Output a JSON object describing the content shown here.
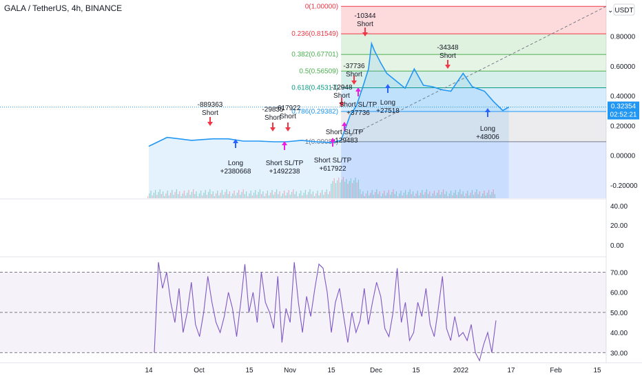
{
  "header": {
    "symbol_title": "GALA / TetherUS, 4h, BINANCE",
    "currency_button": "USDT"
  },
  "colors": {
    "line": "#2196f3",
    "rsi": "#7e57c2",
    "short": "#f23645",
    "long": "#2962ff",
    "sltp": "#e91ee0"
  },
  "chart_data": [
    {
      "type": "line",
      "title": "",
      "price_scale_ticks": [
        "0.80000",
        "0.60000",
        "0.40000",
        "0.20000",
        "0.00000",
        "-0.20000"
      ],
      "time_ticks": [
        "14",
        "Oct",
        "15",
        "Nov",
        "15",
        "Dec",
        "15",
        "2022",
        "17",
        "Feb",
        "15"
      ],
      "series": [
        {
          "x": [
            "Sep 14",
            "Sep 20",
            "Sep 28",
            "Oct 5",
            "Oct 10",
            "Oct 15",
            "Oct 20",
            "Oct 25",
            "Oct 29",
            "Nov 3",
            "Nov 8",
            "Nov 13",
            "Nov 16",
            "Nov 19",
            "Nov 21",
            "Nov 23",
            "Nov 25",
            "Nov 26",
            "Nov 27",
            "Nov 29",
            "Dec 1",
            "Dec 4",
            "Dec 7",
            "Dec 10",
            "Dec 13",
            "Dec 16",
            "Dec 19",
            "Dec 22",
            "Dec 26",
            "Dec 29",
            "Jan 2",
            "Jan 5",
            "Jan 8",
            "Jan 10"
          ],
          "y": [
            0.06,
            0.12,
            0.1,
            0.11,
            0.11,
            0.095,
            0.095,
            0.09,
            0.09,
            0.1,
            0.09,
            0.085,
            0.1,
            0.27,
            0.33,
            0.45,
            0.58,
            0.75,
            0.7,
            0.62,
            0.55,
            0.5,
            0.45,
            0.58,
            0.47,
            0.46,
            0.44,
            0.43,
            0.55,
            0.46,
            0.43,
            0.36,
            0.3,
            0.32354
          ]
        }
      ],
      "fib_levels": [
        {
          "ratio": "1",
          "value": 0.09084,
          "label": "1(0.09084)"
        },
        {
          "ratio": "0.786",
          "value": 0.29382,
          "label": "0.786(0.29382)"
        },
        {
          "ratio": "0.618",
          "value": 0.45317,
          "label": "0.618(0.45317)"
        },
        {
          "ratio": "0.5",
          "value": 0.56509,
          "label": "0.5(0.56509)"
        },
        {
          "ratio": "0.382",
          "value": 0.67701,
          "label": "0.382(0.67701)"
        },
        {
          "ratio": "0.236",
          "value": 0.81549,
          "label": "0.236(0.81549)"
        },
        {
          "ratio": "0",
          "value": 1.0,
          "label": "0(1.00000)"
        }
      ],
      "last_price": "0.32354",
      "countdown": "02:52:21",
      "annotations": [
        {
          "lines": [
            "-889363",
            "Short"
          ]
        },
        {
          "lines": [
            "Long",
            "+2380668"
          ]
        },
        {
          "lines": [
            "-29835",
            "Short"
          ]
        },
        {
          "lines": [
            "-617922",
            "Short"
          ]
        },
        {
          "lines": [
            "Short SL/TP",
            "+1492238"
          ]
        },
        {
          "lines": [
            "Short SL/TP",
            "+129483"
          ]
        },
        {
          "lines": [
            "Short SL/TP",
            "+617922"
          ]
        },
        {
          "lines": [
            "-12948",
            "Short"
          ]
        },
        {
          "lines": [
            "-37736",
            "Short"
          ]
        },
        {
          "lines": [
            "Short SL/TP",
            "+37736"
          ]
        },
        {
          "lines": [
            "-10344",
            "Short"
          ]
        },
        {
          "lines": [
            "Long",
            "+27518"
          ]
        },
        {
          "lines": [
            "-34348",
            "Short"
          ]
        },
        {
          "lines": [
            "Long",
            "+48006"
          ]
        }
      ]
    },
    {
      "type": "line",
      "title": "",
      "scale_ticks": [
        "40.00",
        "20.00",
        "0.00"
      ]
    },
    {
      "type": "line",
      "title": "",
      "scale_ticks": [
        "70.00",
        "60.00",
        "50.00",
        "40.00",
        "30.00"
      ],
      "ylim": [
        26,
        76
      ],
      "band": [
        30,
        70
      ],
      "midline": 50,
      "series": [
        {
          "values": [
            30,
            75,
            62,
            70,
            55,
            45,
            62,
            40,
            50,
            65,
            44,
            38,
            50,
            68,
            55,
            45,
            40,
            48,
            60,
            52,
            38,
            55,
            74,
            50,
            60,
            45,
            70,
            55,
            50,
            42,
            68,
            35,
            52,
            45,
            75,
            55,
            40,
            58,
            48,
            62,
            74,
            72,
            60,
            40,
            55,
            62,
            48,
            35,
            50,
            40,
            46,
            62,
            44,
            55,
            65,
            58,
            42,
            38,
            50,
            72,
            45,
            55,
            36,
            40,
            55,
            48,
            62,
            44,
            38,
            52,
            68,
            42,
            36,
            48,
            38,
            40,
            36,
            44,
            30,
            26,
            34,
            40,
            30,
            46
          ]
        }
      ]
    }
  ]
}
